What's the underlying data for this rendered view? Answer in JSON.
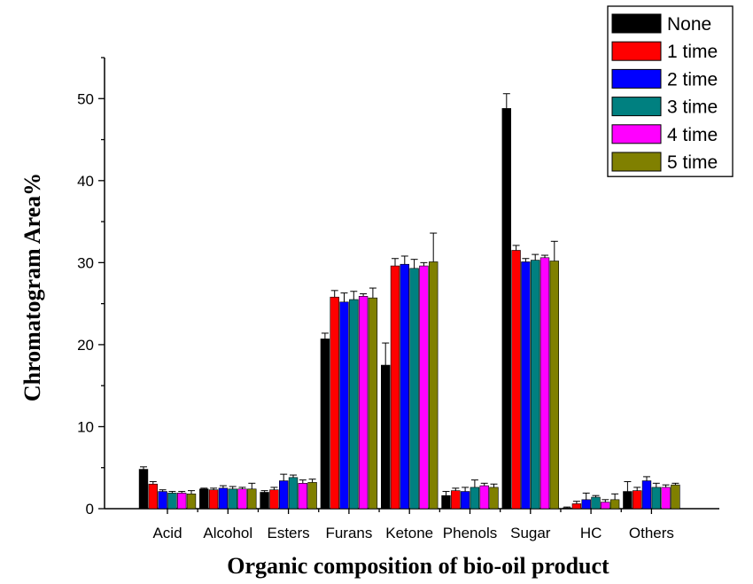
{
  "chart_data": {
    "type": "bar",
    "title": "",
    "xlabel": "Organic composition of bio-oil product",
    "ylabel": "Chromatogram Area%",
    "ylim": [
      0,
      55
    ],
    "yticks": [
      0,
      10,
      20,
      30,
      40,
      50
    ],
    "categories": [
      "Acid",
      "Alcohol",
      "Esters",
      "Furans",
      "Ketone",
      "Phenols",
      "Sugar",
      "HC",
      "Others"
    ],
    "legend_position": "top-right",
    "grid": false,
    "error_bars": true,
    "series": [
      {
        "name": "None",
        "color": "#000000",
        "values": [
          4.8,
          2.4,
          2.0,
          20.7,
          17.5,
          1.6,
          48.8,
          0.1,
          2.1
        ],
        "errors": [
          0.3,
          0.1,
          0.2,
          0.7,
          2.7,
          0.5,
          1.8,
          0.1,
          1.2
        ]
      },
      {
        "name": "1 time",
        "color": "#ff0000",
        "values": [
          3.0,
          2.3,
          2.3,
          25.8,
          29.6,
          2.2,
          31.5,
          0.6,
          2.2
        ],
        "errors": [
          0.3,
          0.2,
          0.3,
          0.8,
          0.9,
          0.3,
          0.6,
          0.3,
          0.4
        ]
      },
      {
        "name": "2 time",
        "color": "#0000ff",
        "values": [
          2.1,
          2.5,
          3.4,
          25.2,
          29.8,
          2.1,
          30.1,
          1.1,
          3.4
        ],
        "errors": [
          0.2,
          0.3,
          0.8,
          1.1,
          1.0,
          0.5,
          0.4,
          0.8,
          0.5
        ]
      },
      {
        "name": "3 time",
        "color": "#008080",
        "values": [
          1.9,
          2.4,
          3.8,
          25.5,
          29.3,
          2.6,
          30.3,
          1.4,
          2.6
        ],
        "errors": [
          0.2,
          0.3,
          0.3,
          1.0,
          1.1,
          0.9,
          0.7,
          0.2,
          0.5
        ]
      },
      {
        "name": "4 time",
        "color": "#ff00ff",
        "values": [
          1.9,
          2.4,
          3.1,
          25.9,
          29.6,
          2.8,
          30.6,
          0.8,
          2.6
        ],
        "errors": [
          0.2,
          0.2,
          0.4,
          0.3,
          0.4,
          0.3,
          0.3,
          0.3,
          0.3
        ]
      },
      {
        "name": "5 time",
        "color": "#808000",
        "values": [
          1.8,
          2.4,
          3.2,
          25.7,
          30.1,
          2.6,
          30.2,
          1.1,
          2.9
        ],
        "errors": [
          0.4,
          0.7,
          0.4,
          1.2,
          3.5,
          0.4,
          2.4,
          0.7,
          0.2
        ]
      }
    ]
  }
}
